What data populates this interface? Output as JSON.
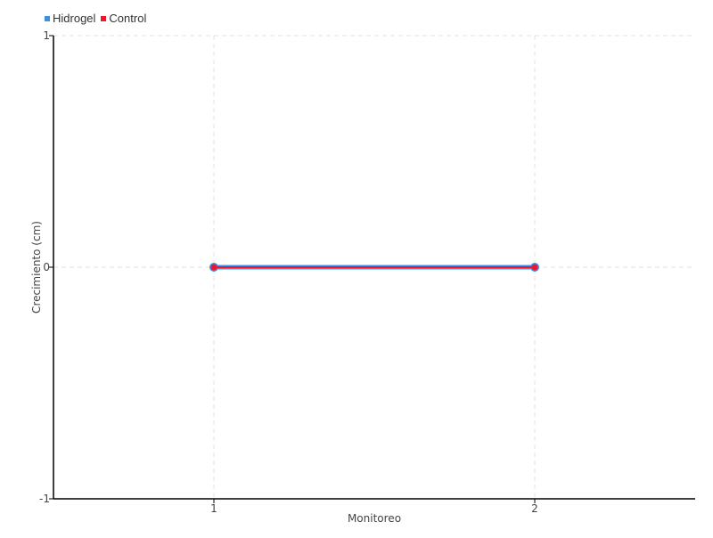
{
  "chart_data": {
    "type": "line",
    "categories": [
      "1",
      "2"
    ],
    "x": [
      1,
      2
    ],
    "xlim": [
      0.5,
      2.5
    ],
    "ylim": [
      -1,
      1
    ],
    "yticks": [
      -1,
      0,
      1
    ],
    "xlabel": "Monitoreo",
    "ylabel": "Crecimiento (cm)",
    "grid": true,
    "legend_placement": "top-left",
    "series": [
      {
        "name": "Hidrogel",
        "values": [
          0,
          0
        ],
        "color": "#3b8fe8"
      },
      {
        "name": "Control",
        "values": [
          0,
          0
        ],
        "color": "#f0142d"
      }
    ]
  }
}
